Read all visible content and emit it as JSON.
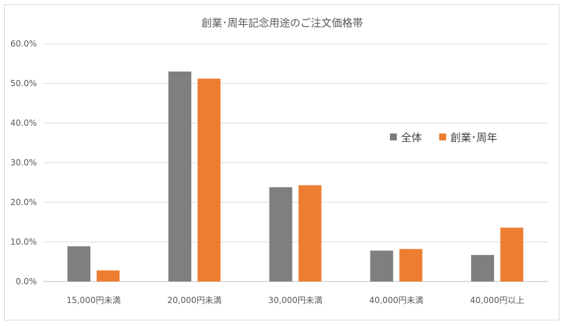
{
  "chart_data": {
    "type": "bar",
    "title": "創業･周年記念用途のご注文価格帯",
    "xlabel": "",
    "ylabel": "",
    "categories": [
      "15,000円未満",
      "20,000円未満",
      "30,000円未満",
      "40,000円未満",
      "40,000円以上"
    ],
    "series": [
      {
        "name": "全体",
        "values": [
          8.9,
          53.0,
          23.8,
          7.8,
          6.7
        ],
        "color": "#7f7f7f"
      },
      {
        "name": "創業･周年",
        "values": [
          2.8,
          51.2,
          24.3,
          8.2,
          13.6
        ],
        "color": "#ed7d31"
      }
    ],
    "ylim": [
      0,
      60
    ],
    "yticks": [
      "0.0%",
      "10.0%",
      "20.0%",
      "30.0%",
      "40.0%",
      "50.0%",
      "60.0%"
    ],
    "grid": true,
    "legend_position": "right"
  }
}
